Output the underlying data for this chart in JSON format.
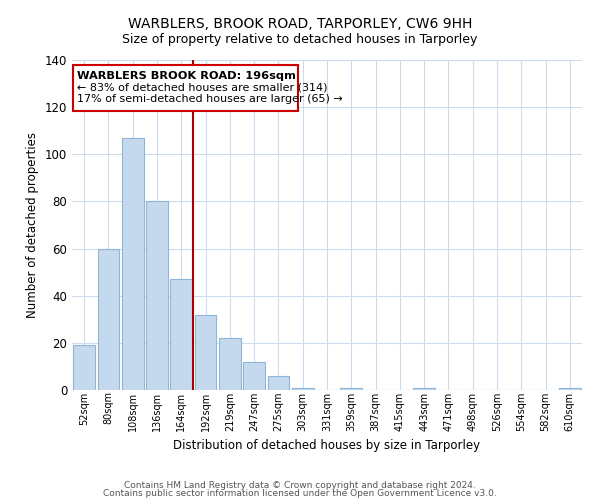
{
  "title": "WARBLERS, BROOK ROAD, TARPORLEY, CW6 9HH",
  "subtitle": "Size of property relative to detached houses in Tarporley",
  "xlabel": "Distribution of detached houses by size in Tarporley",
  "ylabel": "Number of detached properties",
  "bar_labels": [
    "52sqm",
    "80sqm",
    "108sqm",
    "136sqm",
    "164sqm",
    "192sqm",
    "219sqm",
    "247sqm",
    "275sqm",
    "303sqm",
    "331sqm",
    "359sqm",
    "387sqm",
    "415sqm",
    "443sqm",
    "471sqm",
    "498sqm",
    "526sqm",
    "554sqm",
    "582sqm",
    "610sqm"
  ],
  "bar_values": [
    19,
    60,
    107,
    80,
    47,
    32,
    22,
    12,
    6,
    1,
    0,
    1,
    0,
    0,
    1,
    0,
    0,
    0,
    0,
    0,
    1
  ],
  "bar_color": "#c5d9ee",
  "bar_edge_color": "#8fb4d8",
  "reference_line_index": 5,
  "ylim": [
    0,
    140
  ],
  "yticks": [
    0,
    20,
    40,
    60,
    80,
    100,
    120,
    140
  ],
  "annotation_title": "WARBLERS BROOK ROAD: 196sqm",
  "annotation_line1": "← 83% of detached houses are smaller (314)",
  "annotation_line2": "17% of semi-detached houses are larger (65) →",
  "footer_line1": "Contains HM Land Registry data © Crown copyright and database right 2024.",
  "footer_line2": "Contains public sector information licensed under the Open Government Licence v3.0.",
  "ref_line_color": "#aa0000",
  "box_color": "#cc0000",
  "background_color": "#ffffff",
  "grid_color": "#ccdcee"
}
